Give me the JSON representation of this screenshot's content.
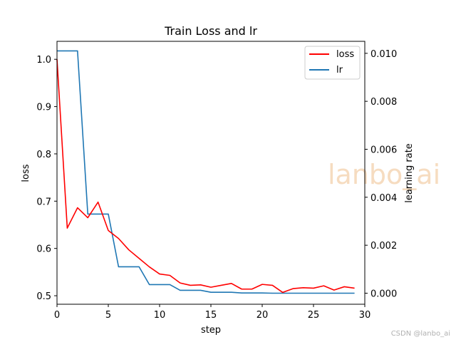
{
  "chart_data": {
    "type": "line",
    "title": "Train Loss and lr",
    "xlabel": "step",
    "ylabel": "loss",
    "y2label": "learning rate",
    "xlim": [
      0,
      30
    ],
    "ylim": [
      0.482,
      1.038
    ],
    "y2lim": [
      -0.00046,
      0.0105
    ],
    "xticks": [
      0,
      5,
      10,
      15,
      20,
      25,
      30
    ],
    "yticks": [
      0.5,
      0.6,
      0.7,
      0.8,
      0.9,
      1.0
    ],
    "y2ticks": [
      0.0,
      0.002,
      0.004,
      0.006,
      0.008,
      0.01
    ],
    "x": [
      0,
      1,
      2,
      3,
      4,
      5,
      6,
      7,
      8,
      9,
      10,
      11,
      12,
      13,
      14,
      15,
      16,
      17,
      18,
      19,
      20,
      21,
      22,
      23,
      24,
      25,
      26,
      27,
      28,
      29
    ],
    "series": [
      {
        "name": "loss",
        "axis": "left",
        "color": "#ff0000",
        "values": [
          1.0,
          0.643,
          0.686,
          0.665,
          0.698,
          0.638,
          0.621,
          0.597,
          0.579,
          0.561,
          0.546,
          0.543,
          0.527,
          0.522,
          0.523,
          0.518,
          0.522,
          0.526,
          0.514,
          0.514,
          0.524,
          0.522,
          0.507,
          0.515,
          0.517,
          0.516,
          0.521,
          0.512,
          0.519,
          0.516
        ]
      },
      {
        "name": "lr",
        "axis": "right",
        "color": "#1f77b4",
        "values": [
          0.0101,
          0.0101,
          0.0101,
          0.0033,
          0.0033,
          0.0033,
          0.0011,
          0.0011,
          0.0011,
          0.00036,
          0.00036,
          0.00036,
          0.00012,
          0.00012,
          0.00012,
          4e-05,
          4e-05,
          4e-05,
          1e-05,
          1e-05,
          1e-05,
          0.0,
          0.0,
          0.0,
          0.0,
          0.0,
          0.0,
          0.0,
          0.0,
          0.0
        ]
      }
    ],
    "legend_position": "top-right",
    "grid": false
  },
  "watermark": "lanbo_ai",
  "credit": "CSDN @lanbo_ai"
}
